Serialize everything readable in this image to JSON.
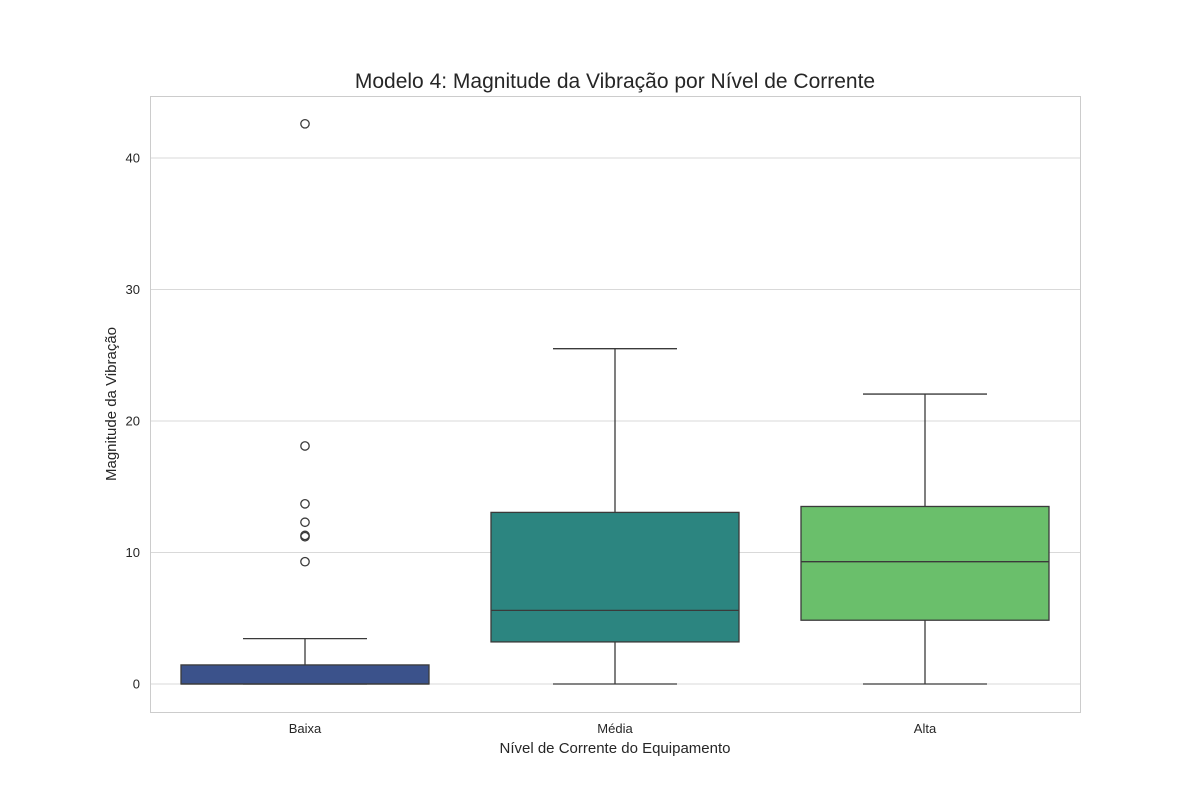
{
  "chart_data": {
    "type": "box",
    "title": "Modelo 4: Magnitude da Vibração por Nível de Corrente",
    "xlabel": "Nível de Corrente do Equipamento",
    "ylabel": "Magnitude da Vibração",
    "ylim": [
      -2.1,
      45
    ],
    "yticks": [
      0,
      10,
      20,
      30,
      40
    ],
    "grid": "horizontal",
    "categories": [
      "Baixa",
      "Média",
      "Alta"
    ],
    "boxes": [
      {
        "category": "Baixa",
        "color": "#3b528b",
        "whisker_low": 0.0,
        "q1": 0.0,
        "median": 0.0,
        "q3": 1.45,
        "whisker_high": 3.45,
        "outliers": [
          42.6,
          18.1,
          13.7,
          12.3,
          11.3,
          11.2,
          9.3
        ]
      },
      {
        "category": "Média",
        "color": "#2c8580",
        "whisker_low": 0.0,
        "q1": 3.2,
        "median": 5.6,
        "q3": 13.05,
        "whisker_high": 25.5,
        "outliers": []
      },
      {
        "category": "Alta",
        "color": "#6abf6b",
        "whisker_low": 0.0,
        "q1": 4.85,
        "median": 9.3,
        "q3": 13.5,
        "whisker_high": 22.05,
        "outliers": []
      }
    ]
  }
}
